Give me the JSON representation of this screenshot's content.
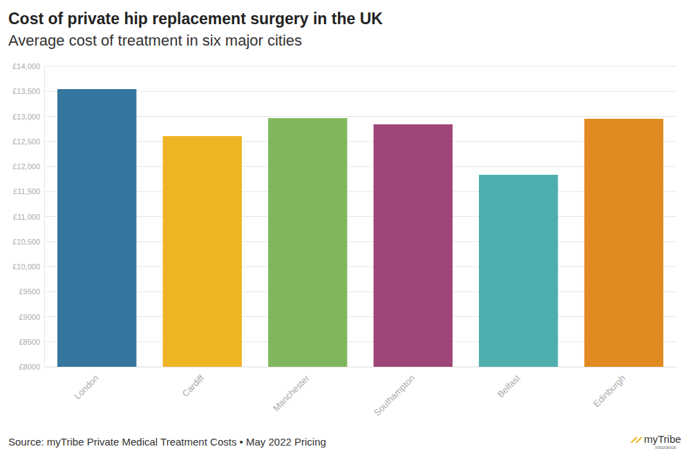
{
  "chart_data": {
    "type": "bar",
    "title": "Cost of private hip replacement surgery in the UK",
    "subtitle": "Average cost of treatment in six major cities",
    "source": "Source: myTribe Private Medical Treatment Costs • May 2022 Pricing",
    "logo": "myTribe",
    "logo_sub": "Insurance",
    "categories": [
      "London",
      "Cardiff",
      "Manchester",
      "Southampton",
      "Belfast",
      "Edinburgh"
    ],
    "values": [
      13545,
      12607,
      12966,
      12841,
      11834,
      12952
    ],
    "colors": [
      "#34769e",
      "#efb424",
      "#80b75c",
      "#9d4677",
      "#4eaeae",
      "#e18a22"
    ],
    "ylim": [
      8000,
      14000
    ],
    "yticks": [
      {
        "value": 8000,
        "label": "£8000"
      },
      {
        "value": 8500,
        "label": "£8500"
      },
      {
        "value": 9000,
        "label": "£9000"
      },
      {
        "value": 9500,
        "label": "£9500"
      },
      {
        "value": 10000,
        "label": "£10,000"
      },
      {
        "value": 10500,
        "label": "£10,500"
      },
      {
        "value": 11000,
        "label": "£11,000"
      },
      {
        "value": 11500,
        "label": "£11,500"
      },
      {
        "value": 12000,
        "label": "£12,000"
      },
      {
        "value": 12500,
        "label": "£12,500"
      },
      {
        "value": 13000,
        "label": "£13,000"
      },
      {
        "value": 13500,
        "label": "£13,500"
      },
      {
        "value": 14000,
        "label": "£14,000"
      }
    ],
    "grid": true
  }
}
